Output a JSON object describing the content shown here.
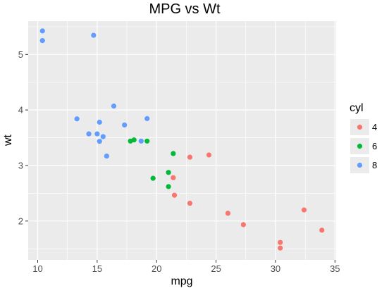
{
  "chart_data": {
    "type": "scatter",
    "title": "MPG vs Wt",
    "xlabel": "mpg",
    "ylabel": "wt",
    "xlim": [
      9.2,
      35.1
    ],
    "ylim": [
      1.3,
      5.6
    ],
    "xticks": [
      10,
      15,
      20,
      25,
      30,
      35
    ],
    "yticks": [
      2,
      3,
      4,
      5
    ],
    "x_minor": [
      12.5,
      17.5,
      22.5,
      27.5,
      32.5
    ],
    "y_minor": [
      1.5,
      2.5,
      3.5,
      4.5,
      5.5
    ],
    "grid": true,
    "legend": {
      "title": "cyl",
      "position": "right",
      "entries": [
        {
          "label": "4",
          "color": "#F8766D"
        },
        {
          "label": "6",
          "color": "#00BA38"
        },
        {
          "label": "8",
          "color": "#619CFF"
        }
      ]
    },
    "series": [
      {
        "name": "4",
        "color": "#F8766D",
        "points": [
          [
            22.8,
            2.32
          ],
          [
            24.4,
            3.19
          ],
          [
            22.8,
            3.15
          ],
          [
            32.4,
            2.2
          ],
          [
            30.4,
            1.615
          ],
          [
            33.9,
            1.835
          ],
          [
            21.5,
            2.465
          ],
          [
            27.3,
            1.935
          ],
          [
            26.0,
            2.14
          ],
          [
            30.4,
            1.513
          ],
          [
            21.4,
            2.78
          ]
        ]
      },
      {
        "name": "6",
        "color": "#00BA38",
        "points": [
          [
            21.0,
            2.62
          ],
          [
            21.0,
            2.875
          ],
          [
            21.4,
            3.215
          ],
          [
            18.1,
            3.46
          ],
          [
            19.2,
            3.44
          ],
          [
            17.8,
            3.44
          ],
          [
            19.7,
            2.77
          ]
        ]
      },
      {
        "name": "8",
        "color": "#619CFF",
        "points": [
          [
            18.7,
            3.44
          ],
          [
            14.3,
            3.57
          ],
          [
            16.4,
            4.07
          ],
          [
            17.3,
            3.73
          ],
          [
            15.2,
            3.78
          ],
          [
            10.4,
            5.25
          ],
          [
            10.4,
            5.424
          ],
          [
            14.7,
            5.345
          ],
          [
            15.5,
            3.52
          ],
          [
            15.2,
            3.435
          ],
          [
            13.3,
            3.84
          ],
          [
            19.2,
            3.845
          ],
          [
            15.8,
            3.17
          ],
          [
            15.0,
            3.57
          ]
        ]
      }
    ]
  }
}
